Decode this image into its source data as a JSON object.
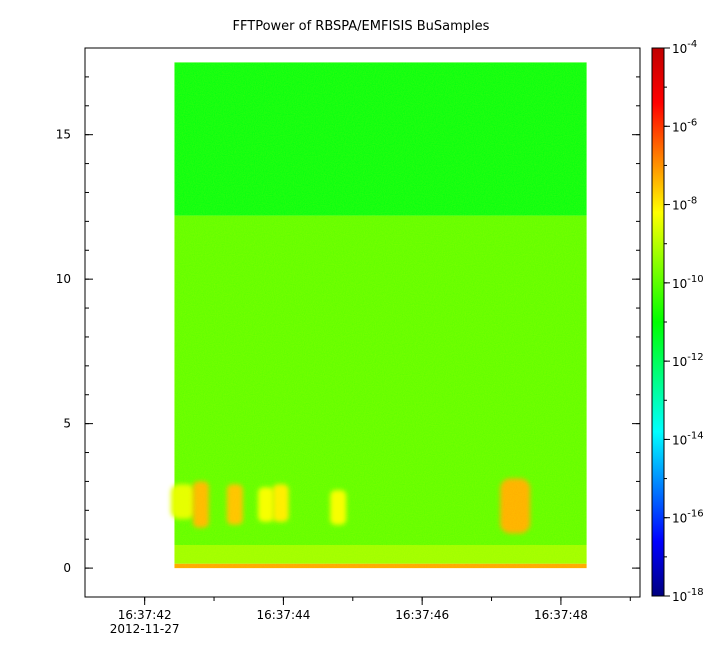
{
  "chart_data": {
    "type": "heatmap",
    "title": "FFTPower of RBSPA/EMFISIS  BuSamples",
    "xlabel": "",
    "ylabel": "",
    "x_range": [
      "16:37:41.14",
      "16:37:49.14"
    ],
    "data_x_range": [
      "16:37:42.43",
      "16:37:48.37"
    ],
    "x_ticks": [
      "16:37:42",
      "16:37:44",
      "16:37:46",
      "16:37:48"
    ],
    "x_date_label": "2012-11-27",
    "ylim": [
      -1,
      18
    ],
    "data_y_range": [
      0,
      17.5
    ],
    "y_ticks": [
      0,
      5,
      10,
      15
    ],
    "color_scale": "log",
    "color_range": [
      1e-18,
      0.0001
    ],
    "colorbar_ticks": [
      {
        "value": 0.0001,
        "base": "10",
        "exp": "-4"
      },
      {
        "value": 1e-06,
        "base": "10",
        "exp": "-6"
      },
      {
        "value": 1e-08,
        "base": "10",
        "exp": "-8"
      },
      {
        "value": 1e-10,
        "base": "10",
        "exp": "-10"
      },
      {
        "value": 1e-12,
        "base": "10",
        "exp": "-12"
      },
      {
        "value": 1e-14,
        "base": "10",
        "exp": "-14"
      },
      {
        "value": 1e-16,
        "base": "10",
        "exp": "-16"
      },
      {
        "value": 1e-18,
        "base": "10",
        "exp": "-18"
      }
    ],
    "colormap": [
      "#00007f",
      "#0000ff",
      "#0080ff",
      "#00ffff",
      "#00ff80",
      "#00ff00",
      "#80ff00",
      "#ffff00",
      "#ff8000",
      "#ff0000",
      "#c00000"
    ],
    "bands": [
      {
        "y": [
          12.2,
          17.5
        ],
        "log_power": -11.2
      },
      {
        "y": [
          0.8,
          12.2
        ],
        "log_power": -10.0
      },
      {
        "y": [
          0.15,
          0.8
        ],
        "log_power": -9.3
      },
      {
        "y": [
          0.0,
          0.15
        ],
        "log_power": -7.2
      }
    ],
    "bursts": [
      {
        "t": "16:37:42.55",
        "y": [
          1.7,
          2.9
        ],
        "log_power": -8.5
      },
      {
        "t": "16:37:42.81",
        "y": [
          1.4,
          3.0
        ],
        "log_power": -7.4
      },
      {
        "t": "16:37:43.30",
        "y": [
          1.5,
          2.9
        ],
        "log_power": -7.5
      },
      {
        "t": "16:37:43.75",
        "y": [
          1.6,
          2.8
        ],
        "log_power": -8.3
      },
      {
        "t": "16:37:43.96",
        "y": [
          1.6,
          2.9
        ],
        "log_power": -8.0
      },
      {
        "t": "16:37:44.79",
        "y": [
          1.5,
          2.7
        ],
        "log_power": -8.3
      },
      {
        "t": "16:37:47.34",
        "y": [
          1.2,
          3.1
        ],
        "log_power": -7.3
      }
    ]
  }
}
